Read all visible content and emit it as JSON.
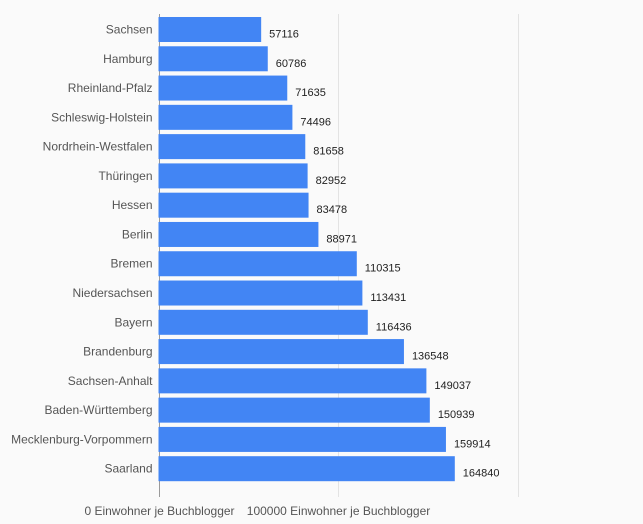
{
  "chart_data": {
    "type": "bar",
    "orientation": "horizontal",
    "title": "",
    "xlabel": "",
    "ylabel": "",
    "xlim": [
      0,
      200000
    ],
    "grid": true,
    "bar_color": "#4285f4",
    "categories": [
      "Sachsen",
      "Hamburg",
      "Rheinland-Pfalz",
      "Schleswig-Holstein",
      "Nordrhein-Westfalen",
      "Thüringen",
      "Hessen",
      "Berlin",
      "Bremen",
      "Niedersachsen",
      "Bayern",
      "Brandenburg",
      "Sachsen-Anhalt",
      "Baden-Württemberg",
      "Mecklenburg-Vorpommern",
      "Saarland"
    ],
    "values": [
      57116,
      60786,
      71635,
      74496,
      81658,
      82952,
      83478,
      88971,
      110315,
      113431,
      116436,
      136548,
      149037,
      150939,
      159914,
      164840
    ],
    "ticks": [
      {
        "value": 0,
        "label": "0 Einwohner je Buchblogger"
      },
      {
        "value": 100000,
        "label": "100000 Einwohner je Buchblogger"
      },
      {
        "value": 200000,
        "label": ""
      }
    ]
  }
}
